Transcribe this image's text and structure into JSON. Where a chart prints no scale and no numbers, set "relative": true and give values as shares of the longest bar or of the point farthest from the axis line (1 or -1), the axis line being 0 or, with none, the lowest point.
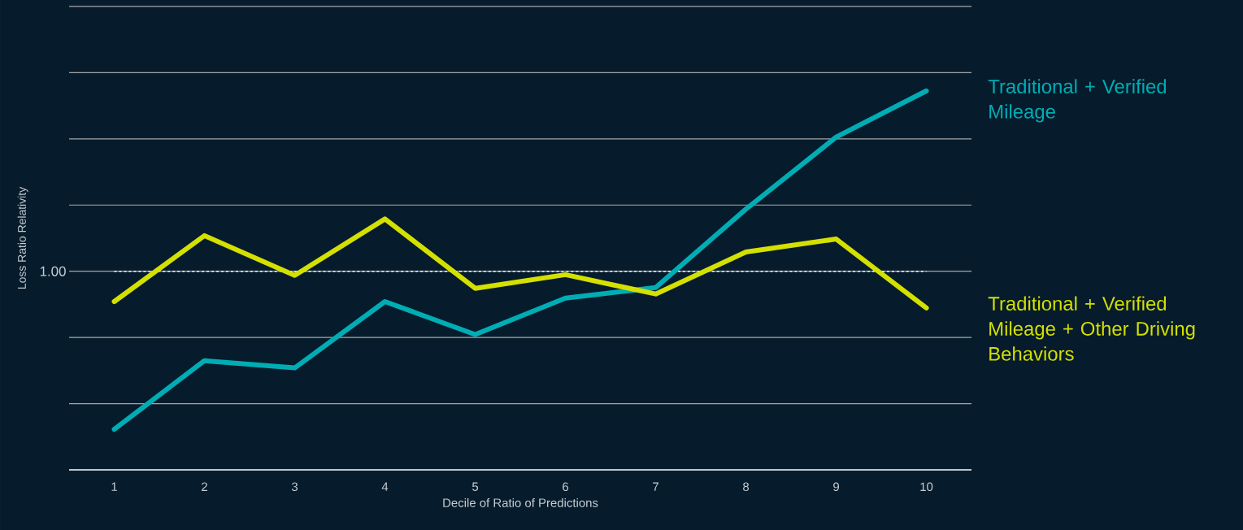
{
  "chart_data": {
    "type": "line",
    "relative": true,
    "xlabel": "Decile of Ratio of Predictions",
    "ylabel": "Loss Ratio Relativity",
    "categories": [
      "1",
      "2",
      "3",
      "4",
      "5",
      "6",
      "7",
      "8",
      "9",
      "10"
    ],
    "series": [
      {
        "name": "Traditional + Verified Mileage",
        "color": "#00adb5",
        "values": [
          0.107,
          0.288,
          0.269,
          0.444,
          0.357,
          0.453,
          0.481,
          0.688,
          0.878,
          1
        ]
      },
      {
        "name": "Traditional + Verified Mileage + Other Driving Behaviors",
        "color": "#d4e000",
        "values": [
          0.444,
          0.618,
          0.513,
          0.662,
          0.479,
          0.515,
          0.464,
          0.575,
          0.609,
          0.427
        ]
      }
    ],
    "ref_lines": [
      {
        "axis": "y",
        "value": 0.524,
        "color": "#ffffff",
        "line_style": "dashed"
      }
    ],
    "annotations": [
      "1.00"
    ],
    "grid": "y",
    "legend": "right",
    "marker": "none",
    "line_style": "solid"
  }
}
